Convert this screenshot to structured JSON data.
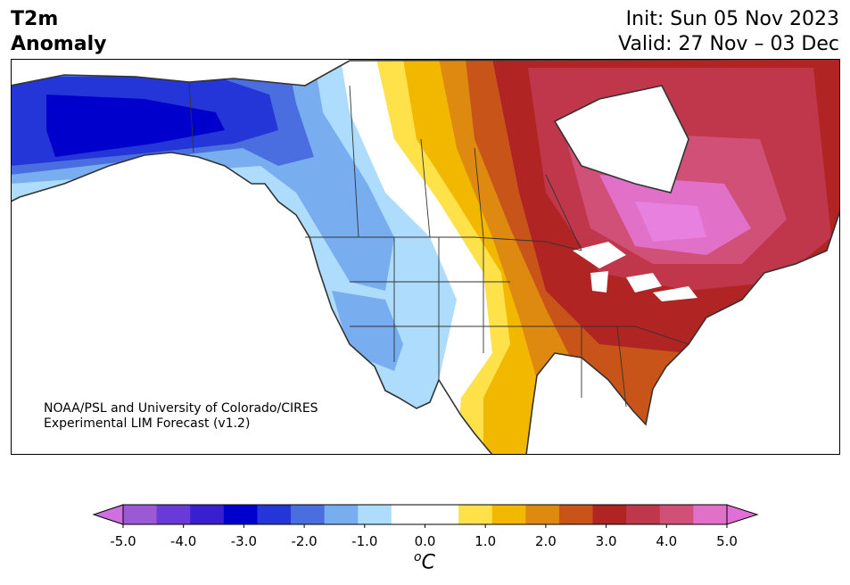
{
  "header": {
    "title_line1": "T2m",
    "title_line2": "Anomaly",
    "init": "Init: Sun 05 Nov 2023",
    "valid": "Valid: 27 Nov – 03 Dec"
  },
  "credit": {
    "line1": "NOAA/PSL and University of Colorado/CIRES",
    "line2": "Experimental LIM Forecast (v1.2)"
  },
  "colorbar": {
    "unit_sup": "o",
    "unit": "C",
    "ticks": [
      "-5.0",
      "-4.0",
      "-3.0",
      "-2.0",
      "-1.0",
      "0.0",
      "1.0",
      "2.0",
      "3.0",
      "4.0",
      "5.0"
    ],
    "colors": [
      "#9b59d6",
      "#6a3ad8",
      "#3a1fd0",
      "#0000cc",
      "#2436d8",
      "#4a6ee0",
      "#78aef0",
      "#aedcfc",
      "#ffffff",
      "#ffffff",
      "#ffe14a",
      "#f2b800",
      "#de8a10",
      "#c8541a",
      "#b02424",
      "#c0364a",
      "#d05078",
      "#e070c8"
    ],
    "under_color": "#d070e0",
    "over_color": "#e070d8"
  },
  "colors": {
    "frame": "#000000",
    "coast": "#333333"
  }
}
